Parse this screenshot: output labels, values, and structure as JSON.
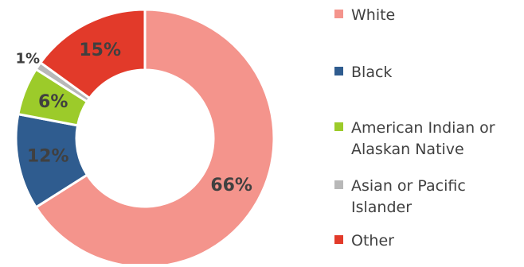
{
  "chart_data": {
    "type": "pie",
    "donut": true,
    "title": "",
    "categories": [
      "White",
      "Black",
      "American Indian or Alaskan Native",
      "Asian or Pacific Islander",
      "Other"
    ],
    "values": [
      66,
      12,
      6,
      1,
      15
    ],
    "labels": [
      "66%",
      "12%",
      "6%",
      "1%",
      "15%"
    ],
    "colors": [
      "#F4948C",
      "#2F5C8F",
      "#9CCB2A",
      "#B8B8B8",
      "#E23A2A"
    ],
    "legend_position": "right"
  }
}
